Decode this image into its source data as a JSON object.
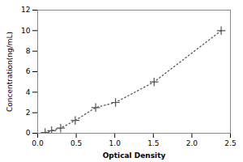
{
  "chart_data": {
    "type": "line",
    "x": [
      0.097,
      0.181,
      0.298,
      0.487,
      0.752,
      1.01,
      1.51,
      2.38
    ],
    "values": [
      0.078,
      0.25,
      0.5,
      1.25,
      2.5,
      3.0,
      5.0,
      10.0
    ],
    "xlabel": "Optical Density",
    "ylabel": "Concentration(ng/mL)",
    "xlim": [
      0,
      2.5
    ],
    "ylim": [
      0,
      12
    ],
    "xticks": [
      {
        "value": 0,
        "label": "0.0"
      },
      0.5,
      {
        "value": 1,
        "label": "1.0"
      },
      1.5,
      {
        "value": 2,
        "label": "2.0"
      },
      2.5
    ],
    "yticks": [
      0,
      2,
      4,
      6,
      8,
      10,
      12
    ],
    "color": "#555555",
    "marker": "plus",
    "line_style": "dotted"
  }
}
